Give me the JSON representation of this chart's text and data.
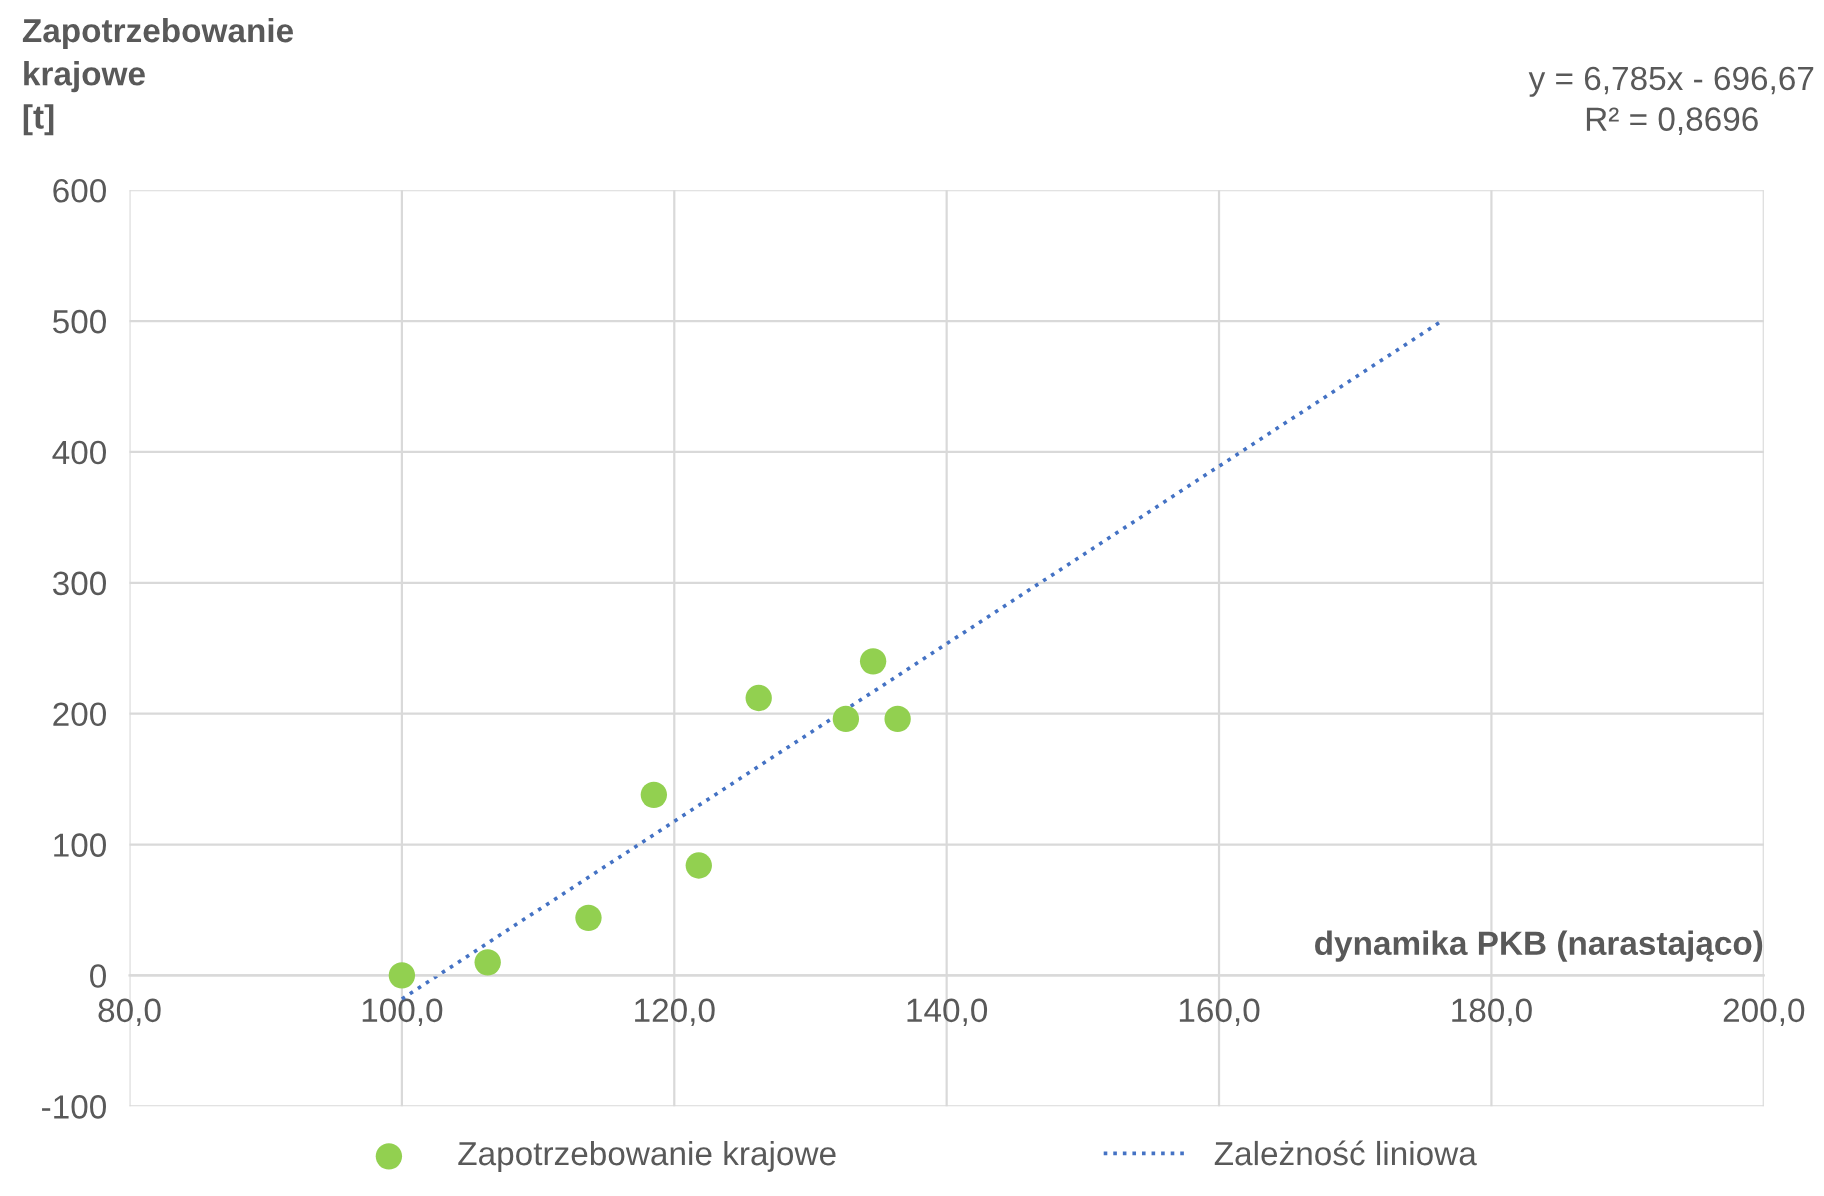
{
  "chart_data": {
    "type": "scatter",
    "xlabel": "dynamika PKB (narastająco)",
    "ylabel": "Zapotrzebowanie\nkrajowe\n[t]",
    "annotations": [
      "y = 6,785x - 696,67\nR² = 0,8696"
    ],
    "series": [
      {
        "name": "Zapotrzebowanie krajowe",
        "color": "#92d050",
        "marker": "circle",
        "x": [
          100.0,
          106.3,
          113.7,
          118.5,
          121.8,
          126.2,
          132.6,
          134.6,
          136.4
        ],
        "values": [
          0,
          10,
          44,
          138,
          84,
          212,
          196,
          240,
          196
        ]
      },
      {
        "name": "Zależność liniowa",
        "type": "line",
        "color": "#4472c4",
        "line_style": "dotted",
        "marker": "none",
        "x": [
          100.0,
          176.2
        ],
        "values": [
          -18,
          499
        ]
      }
    ],
    "xlim": [
      80,
      200
    ],
    "xticks": [
      {
        "value": 80,
        "label": "80,0"
      },
      {
        "value": 100,
        "label": "100,0"
      },
      {
        "value": 120,
        "label": "120,0"
      },
      {
        "value": 140,
        "label": "140,0"
      },
      {
        "value": 160,
        "label": "160,0"
      },
      {
        "value": 180,
        "label": "180,0"
      },
      {
        "value": 200,
        "label": "200,0"
      }
    ],
    "ylim": [
      -100,
      600
    ],
    "yticks": [
      -100,
      0,
      100,
      200,
      300,
      400,
      500,
      600
    ],
    "grid": true,
    "legend": "bottom"
  }
}
